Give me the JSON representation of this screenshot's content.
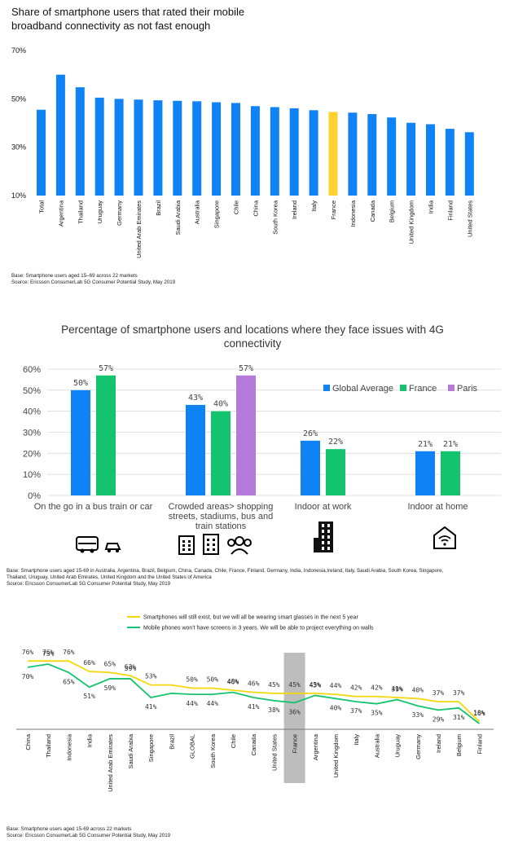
{
  "chart_data": [
    {
      "type": "bar",
      "title": "Share of smartphone users that rated their mobile broadband connectivity as not fast enough",
      "categories": [
        "Total",
        "Argentina",
        "Thailand",
        "Uruguay",
        "Germany",
        "United Arab Emirates",
        "Brazil",
        "Saudi Arabia",
        "Australia",
        "Singapore",
        "Chile",
        "China",
        "South Korea",
        "Ireland",
        "Italy",
        "France",
        "Indonesia",
        "Canada",
        "Belgium",
        "United Kingdom",
        "India",
        "Finland",
        "United States"
      ],
      "values": [
        45.5,
        60,
        54.8,
        50.5,
        50,
        49.7,
        49.4,
        49.2,
        49,
        48.6,
        48.3,
        47,
        46.6,
        46.1,
        45.3,
        44.6,
        44.3,
        43.7,
        42.3,
        40.1,
        39.5,
        37.6,
        36.2
      ],
      "yticks": [
        "70%",
        "50%",
        "30%",
        "10%"
      ],
      "ylim": [
        10,
        70
      ],
      "colors": {
        "default": "#0f82f5",
        "highlight": "#fed12f"
      },
      "highlight": "France",
      "notes": [
        "Base: Smartphone users aged 15–69 across 22 markets",
        "Source: Ericsson ConsumerLab 5G Consumer Potential Study, May 2019"
      ]
    },
    {
      "type": "bar",
      "title": "Percentage of smartphone users and locations where they face issues with 4G connectivity",
      "categories": [
        [
          "On the go in a bus train or car"
        ],
        [
          "Crowded areas> shopping",
          "streets, stadiums, bus and",
          "train stations"
        ],
        [
          "Indoor at work"
        ],
        [
          "Indoor at home"
        ]
      ],
      "series": [
        {
          "name": "Global Average",
          "color": "#0f82f5",
          "values": [
            50,
            43,
            26,
            21
          ]
        },
        {
          "name": "France",
          "color": "#14c36e",
          "values": [
            57,
            40,
            22,
            21
          ]
        },
        {
          "name": "Paris",
          "color": "#b37ad9",
          "values": [
            null,
            57,
            null,
            null
          ]
        }
      ],
      "data_labels": [
        [
          "50%",
          "57%",
          null
        ],
        [
          "43%",
          "40%",
          "57%"
        ],
        [
          "26%",
          "22%",
          null
        ],
        [
          "21%",
          "21%",
          null
        ]
      ],
      "yticks": [
        "60%",
        "50%",
        "40%",
        "30%",
        "20%",
        "10%",
        "0%"
      ],
      "ylim": [
        0,
        60
      ],
      "legend_position": "top-right",
      "icons": [
        "bus-and-car-icon",
        "crowded-city-icon",
        "office-building-icon",
        "home-wifi-icon"
      ],
      "notes": [
        "Base: Smartphone users aged 15-69 in Australia, Argentina, Brazil, Belgium, China, Canada, Chile, France, Finland, Germany, India, Indonesia,Ireland, Italy, Saudi Arabia, South Korea, Singapore,",
        "Thailand, Uruguay, United Arab Emirates, United Kingdom and the United States of America",
        "Source: Ericsson ConsumerLab 5G Consumer Potential Study, May 2019"
      ]
    },
    {
      "type": "line",
      "categories": [
        "China",
        "Thailand",
        "Indonesia",
        "India",
        "United Arab Emirates",
        "Saudi Arabia",
        "Singapore",
        "Brazil",
        "GLOBAL",
        "South Korea",
        "Chile",
        "Canada",
        "United States",
        "France",
        "Argentina",
        "United Kingdom",
        "Italy",
        "Australia",
        "Uruguay",
        "Germany",
        "Ireland",
        "Belgium",
        "Finland"
      ],
      "series": [
        {
          "name": "Smartphones will still exist, but we will all be wearing smart glasses in the next 5 year",
          "color": "#f5d60a",
          "values": [
            76,
            76,
            76,
            66,
            65,
            62,
            53,
            53,
            50,
            50,
            48,
            46,
            45,
            45,
            45,
            44,
            42,
            42,
            41,
            40,
            37,
            37,
            18
          ]
        },
        {
          "name": "Mobile phones won't have screens in 3 years. We will be able to project everything on walls",
          "color": "#14c36e",
          "values": [
            70,
            73,
            65,
            51,
            59,
            59,
            41,
            45,
            44,
            44,
            46,
            41,
            38,
            36,
            43,
            40,
            37,
            35,
            39,
            33,
            29,
            31,
            16
          ]
        }
      ],
      "labels_top": [
        "76%",
        "76%",
        "76%",
        "66%",
        "65%",
        "62%",
        "53%",
        "",
        "50%",
        "50%",
        "48%",
        "46%",
        "45%",
        "45%",
        "45%",
        "44%",
        "42%",
        "42%",
        "41%",
        "40%",
        "37%",
        "37%",
        "18%"
      ],
      "labels_bottom": [
        "70%",
        "73%",
        "65%",
        "51%",
        "59%",
        "59%",
        "41%",
        "",
        "44%",
        "44%",
        "46%",
        "41%",
        "38%",
        "36%",
        "43%",
        "40%",
        "37%",
        "35%",
        "39%",
        "33%",
        "29%",
        "31%",
        "16%"
      ],
      "highlight": "France",
      "highlight_color": "#bdbdbd",
      "notes": [
        "Base: Smartphone users aged 15-69 across 22 markets",
        "Source: Ericsson ConsumerLab 5G Consumer Potential Study, May 2019"
      ]
    }
  ]
}
